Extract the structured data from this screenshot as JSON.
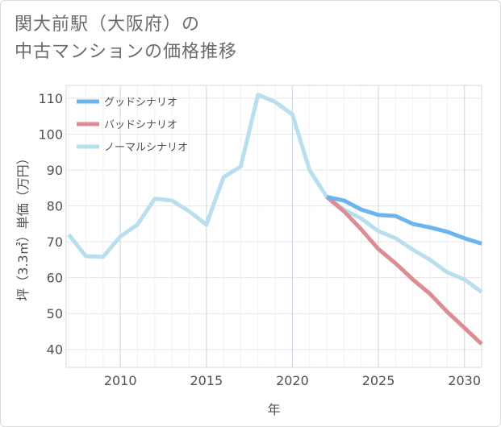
{
  "header": {
    "title_line1": "関大前駅（大阪府）の",
    "title_line2": "中古マンションの価格推移"
  },
  "chart_data": {
    "type": "line",
    "title": "関大前駅（大阪府）の中古マンションの価格推移",
    "xlabel": "年",
    "ylabel": "坪（3.3㎡）単価（万円）",
    "xlim": [
      2006,
      2031
    ],
    "ylim": [
      35,
      115
    ],
    "xticks": [
      2010,
      2015,
      2020,
      2025,
      2030
    ],
    "yticks": [
      40,
      50,
      60,
      70,
      80,
      90,
      100,
      110
    ],
    "grid": true,
    "legend_position": "top-left",
    "series": [
      {
        "name": "グッドシナリオ",
        "color": "#6cb4ee",
        "x": [
          2022,
          2023,
          2024,
          2025,
          2026,
          2027,
          2028,
          2029,
          2030,
          2031
        ],
        "values": [
          82.5,
          81.5,
          79,
          77.5,
          77.2,
          75,
          74,
          72.8,
          71,
          69.5
        ]
      },
      {
        "name": "バッドシナリオ",
        "color": "#dd8c93",
        "x": [
          2022,
          2023,
          2024,
          2025,
          2026,
          2027,
          2028,
          2029,
          2030,
          2031
        ],
        "values": [
          82.5,
          78.5,
          73.5,
          68,
          64,
          59.5,
          55.5,
          50.5,
          46,
          41.5
        ]
      },
      {
        "name": "ノーマルシナリオ",
        "color": "#b9dfee",
        "x": [
          2007,
          2008,
          2009,
          2010,
          2011,
          2012,
          2013,
          2014,
          2015,
          2016,
          2017,
          2018,
          2019,
          2020,
          2021,
          2022,
          2023,
          2024,
          2025,
          2026,
          2027,
          2028,
          2029,
          2030,
          2031
        ],
        "values": [
          72,
          66,
          65.8,
          71.5,
          74.8,
          82,
          81.5,
          78.5,
          74.8,
          88,
          91,
          111,
          109,
          105.5,
          90,
          82.5,
          79,
          76.5,
          73,
          71,
          67.8,
          65,
          61.5,
          59.5,
          56
        ]
      }
    ]
  }
}
